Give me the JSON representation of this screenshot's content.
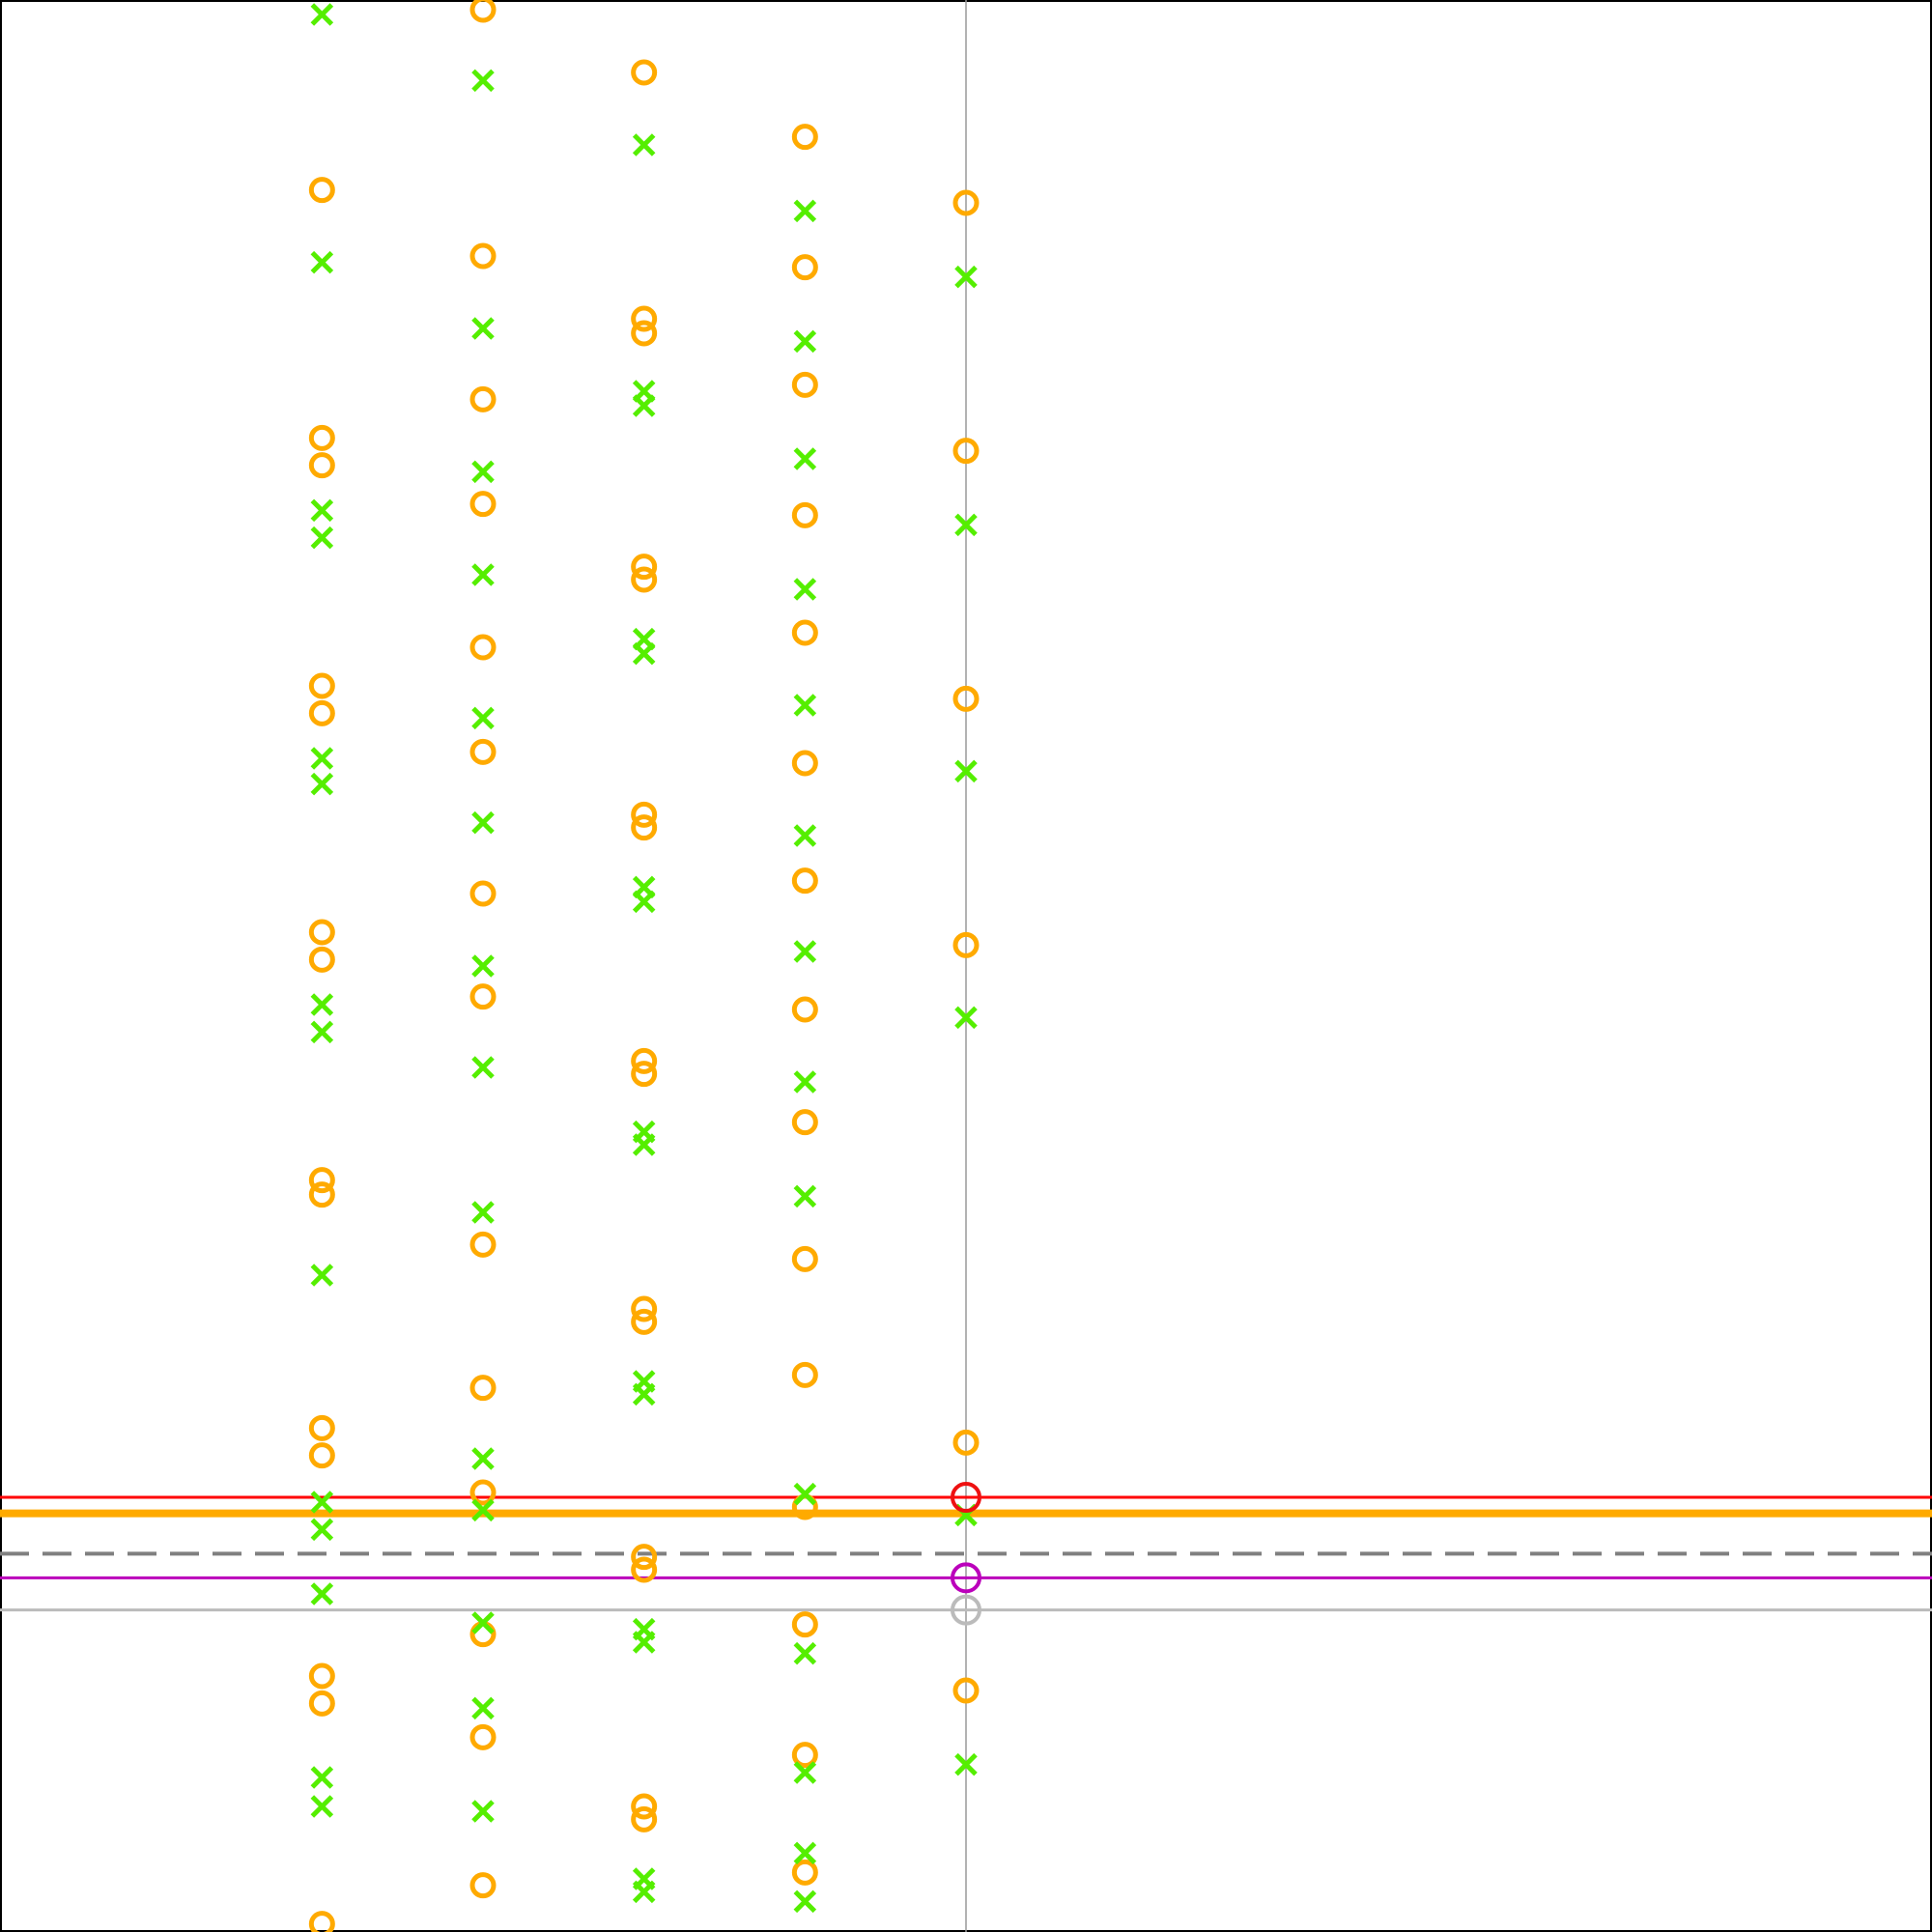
{
  "chart_data": {
    "type": "scatter",
    "title": "",
    "xlabel": "",
    "ylabel": "",
    "xlim": [
      -6,
      6
    ],
    "ylim": [
      -6,
      6
    ],
    "grid": false,
    "legend": "none",
    "vertical_lines": [
      {
        "name": "",
        "x": 0,
        "color": "#999999",
        "style": "solid"
      }
    ],
    "horizontal_lines": [
      {
        "name": "",
        "y": -3.3,
        "color": "#ff0000",
        "style": "solid"
      },
      {
        "name": "",
        "y": -3.4,
        "color": "#ffaa00",
        "style": "solid"
      },
      {
        "name": "",
        "y": -3.65,
        "color": "#808080",
        "style": "dashed"
      },
      {
        "name": "",
        "y": -3.8,
        "color": "#bb00bb",
        "style": "solid"
      },
      {
        "name": "",
        "y": -4.0,
        "color": "#bbbbbb",
        "style": "solid"
      }
    ],
    "highlight_points": [
      {
        "x": 0,
        "y": -3.3,
        "color": "#ee1111"
      },
      {
        "x": 0,
        "y": -3.8,
        "color": "#bb00bb"
      },
      {
        "x": 0,
        "y": -4.0,
        "color": "#bbbbbb"
      }
    ],
    "series": [
      {
        "name": "",
        "marker": "circle",
        "color": "#ffaa00",
        "points": [
          {
            "x": -4,
            "y": 4.82
          },
          {
            "x": -4,
            "y": 3.28
          },
          {
            "x": -4,
            "y": 3.11
          },
          {
            "x": -4,
            "y": 1.74
          },
          {
            "x": -4,
            "y": 1.57
          },
          {
            "x": -4,
            "y": 0.21
          },
          {
            "x": -4,
            "y": 0.04
          },
          {
            "x": -4,
            "y": -1.33
          },
          {
            "x": -4,
            "y": -1.42
          },
          {
            "x": -4,
            "y": -2.87
          },
          {
            "x": -4,
            "y": -3.04
          },
          {
            "x": -4,
            "y": -4.41
          },
          {
            "x": -4,
            "y": -4.58
          },
          {
            "x": -4,
            "y": -5.95
          },
          {
            "x": -3,
            "y": 5.94
          },
          {
            "x": -3,
            "y": 4.41
          },
          {
            "x": -3,
            "y": 3.52
          },
          {
            "x": -3,
            "y": 2.87
          },
          {
            "x": -3,
            "y": 1.98
          },
          {
            "x": -3,
            "y": 1.33
          },
          {
            "x": -3,
            "y": 0.45
          },
          {
            "x": -3,
            "y": -0.19
          },
          {
            "x": -3,
            "y": -1.73
          },
          {
            "x": -3,
            "y": -2.62
          },
          {
            "x": -3,
            "y": -3.27
          },
          {
            "x": -3,
            "y": -4.15
          },
          {
            "x": -3,
            "y": -4.79
          },
          {
            "x": -3,
            "y": -5.71
          },
          {
            "x": -2,
            "y": 5.55
          },
          {
            "x": -2,
            "y": 4.02
          },
          {
            "x": -2,
            "y": 3.93
          },
          {
            "x": -2,
            "y": 2.48
          },
          {
            "x": -2,
            "y": 2.4
          },
          {
            "x": -2,
            "y": 0.94
          },
          {
            "x": -2,
            "y": 0.86
          },
          {
            "x": -2,
            "y": -0.59
          },
          {
            "x": -2,
            "y": -0.67
          },
          {
            "x": -2,
            "y": -2.13
          },
          {
            "x": -2,
            "y": -2.21
          },
          {
            "x": -2,
            "y": -3.67
          },
          {
            "x": -2,
            "y": -3.75
          },
          {
            "x": -2,
            "y": -5.22
          },
          {
            "x": -2,
            "y": -5.3
          },
          {
            "x": -1,
            "y": 5.15
          },
          {
            "x": -1,
            "y": 4.34
          },
          {
            "x": -1,
            "y": 3.61
          },
          {
            "x": -1,
            "y": 2.8
          },
          {
            "x": -1,
            "y": 2.07
          },
          {
            "x": -1,
            "y": 1.26
          },
          {
            "x": -1,
            "y": 0.53
          },
          {
            "x": -1,
            "y": -0.27
          },
          {
            "x": -1,
            "y": -0.97
          },
          {
            "x": -1,
            "y": -1.82
          },
          {
            "x": -1,
            "y": -2.54
          },
          {
            "x": -1,
            "y": -3.36
          },
          {
            "x": -1,
            "y": -4.09
          },
          {
            "x": -1,
            "y": -4.9
          },
          {
            "x": -1,
            "y": -5.63
          },
          {
            "x": 0,
            "y": 4.74
          },
          {
            "x": 0,
            "y": 3.2
          },
          {
            "x": 0,
            "y": 1.66
          },
          {
            "x": 0,
            "y": 0.13
          },
          {
            "x": 0,
            "y": -2.96
          },
          {
            "x": 0,
            "y": -4.5
          }
        ]
      },
      {
        "name": "",
        "marker": "x",
        "color": "#55ee00",
        "points": [
          {
            "x": -4,
            "y": 5.91
          },
          {
            "x": -4,
            "y": 4.37
          },
          {
            "x": -4,
            "y": 2.83
          },
          {
            "x": -4,
            "y": 2.66
          },
          {
            "x": -4,
            "y": 1.29
          },
          {
            "x": -4,
            "y": 1.13
          },
          {
            "x": -4,
            "y": -0.24
          },
          {
            "x": -4,
            "y": -0.41
          },
          {
            "x": -4,
            "y": -1.92
          },
          {
            "x": -4,
            "y": -3.33
          },
          {
            "x": -4,
            "y": -3.9
          },
          {
            "x": -4,
            "y": -3.5
          },
          {
            "x": -4,
            "y": -5.04
          },
          {
            "x": -4,
            "y": -5.22
          },
          {
            "x": -3,
            "y": 5.5
          },
          {
            "x": -3,
            "y": 3.96
          },
          {
            "x": -3,
            "y": 3.07
          },
          {
            "x": -3,
            "y": 2.43
          },
          {
            "x": -3,
            "y": 1.54
          },
          {
            "x": -3,
            "y": 0.89
          },
          {
            "x": -3,
            "y": -0.0
          },
          {
            "x": -3,
            "y": -0.63
          },
          {
            "x": -3,
            "y": -1.53
          },
          {
            "x": -3,
            "y": -3.38
          },
          {
            "x": -3,
            "y": -4.08
          },
          {
            "x": -3,
            "y": -3.06
          },
          {
            "x": -3,
            "y": -4.61
          },
          {
            "x": -3,
            "y": -5.25
          },
          {
            "x": -2,
            "y": 5.1
          },
          {
            "x": -2,
            "y": 3.57
          },
          {
            "x": -2,
            "y": 3.48
          },
          {
            "x": -2,
            "y": 2.03
          },
          {
            "x": -2,
            "y": 1.94
          },
          {
            "x": -2,
            "y": 0.49
          },
          {
            "x": -2,
            "y": 0.4
          },
          {
            "x": -2,
            "y": -1.03
          },
          {
            "x": -2,
            "y": -1.11
          },
          {
            "x": -2,
            "y": -2.58
          },
          {
            "x": -2,
            "y": -2.66
          },
          {
            "x": -2,
            "y": -4.12
          },
          {
            "x": -2,
            "y": -4.2
          },
          {
            "x": -2,
            "y": -5.67
          },
          {
            "x": -2,
            "y": -5.75
          },
          {
            "x": -1,
            "y": 4.69
          },
          {
            "x": -1,
            "y": 3.88
          },
          {
            "x": -1,
            "y": 3.15
          },
          {
            "x": -1,
            "y": 2.34
          },
          {
            "x": -1,
            "y": 1.62
          },
          {
            "x": -1,
            "y": 0.81
          },
          {
            "x": -1,
            "y": 0.09
          },
          {
            "x": -1,
            "y": -0.72
          },
          {
            "x": -1,
            "y": -1.43
          },
          {
            "x": -1,
            "y": -3.28
          },
          {
            "x": -1,
            "y": -4.27
          },
          {
            "x": -1,
            "y": -5.01
          },
          {
            "x": -1,
            "y": -5.81
          },
          {
            "x": -1,
            "y": -5.51
          },
          {
            "x": 0,
            "y": 4.28
          },
          {
            "x": 0,
            "y": 2.74
          },
          {
            "x": 0,
            "y": 1.21
          },
          {
            "x": 0,
            "y": -0.32
          },
          {
            "x": 0,
            "y": -3.41
          },
          {
            "x": 0,
            "y": -4.96
          }
        ]
      }
    ]
  }
}
